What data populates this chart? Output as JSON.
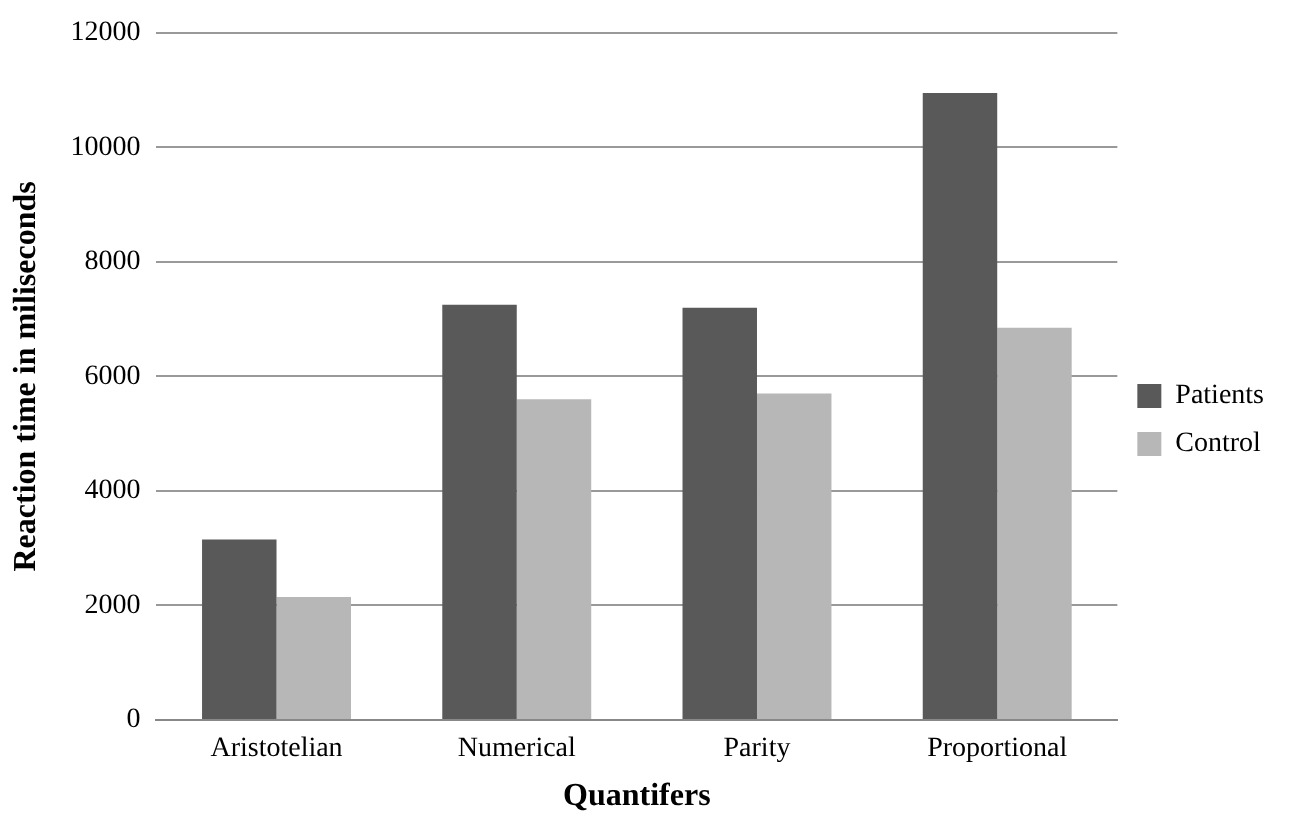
{
  "chart_data": {
    "type": "bar",
    "xlabel": "Quantifers",
    "ylabel": "Reaction time in miliseconds",
    "categories": [
      "Aristotelian",
      "Numerical",
      "Parity",
      "Proportional"
    ],
    "series": [
      {
        "name": "Patients",
        "color": "#595959",
        "values": [
          3150,
          7250,
          7200,
          10950
        ]
      },
      {
        "name": "Control",
        "color": "#b7b7b7",
        "values": [
          2150,
          5600,
          5700,
          6850
        ]
      }
    ],
    "ylim": [
      0,
      12000
    ],
    "yticks": [
      0,
      2000,
      4000,
      6000,
      8000,
      10000,
      12000
    ],
    "grid": "y",
    "legend": "right"
  }
}
